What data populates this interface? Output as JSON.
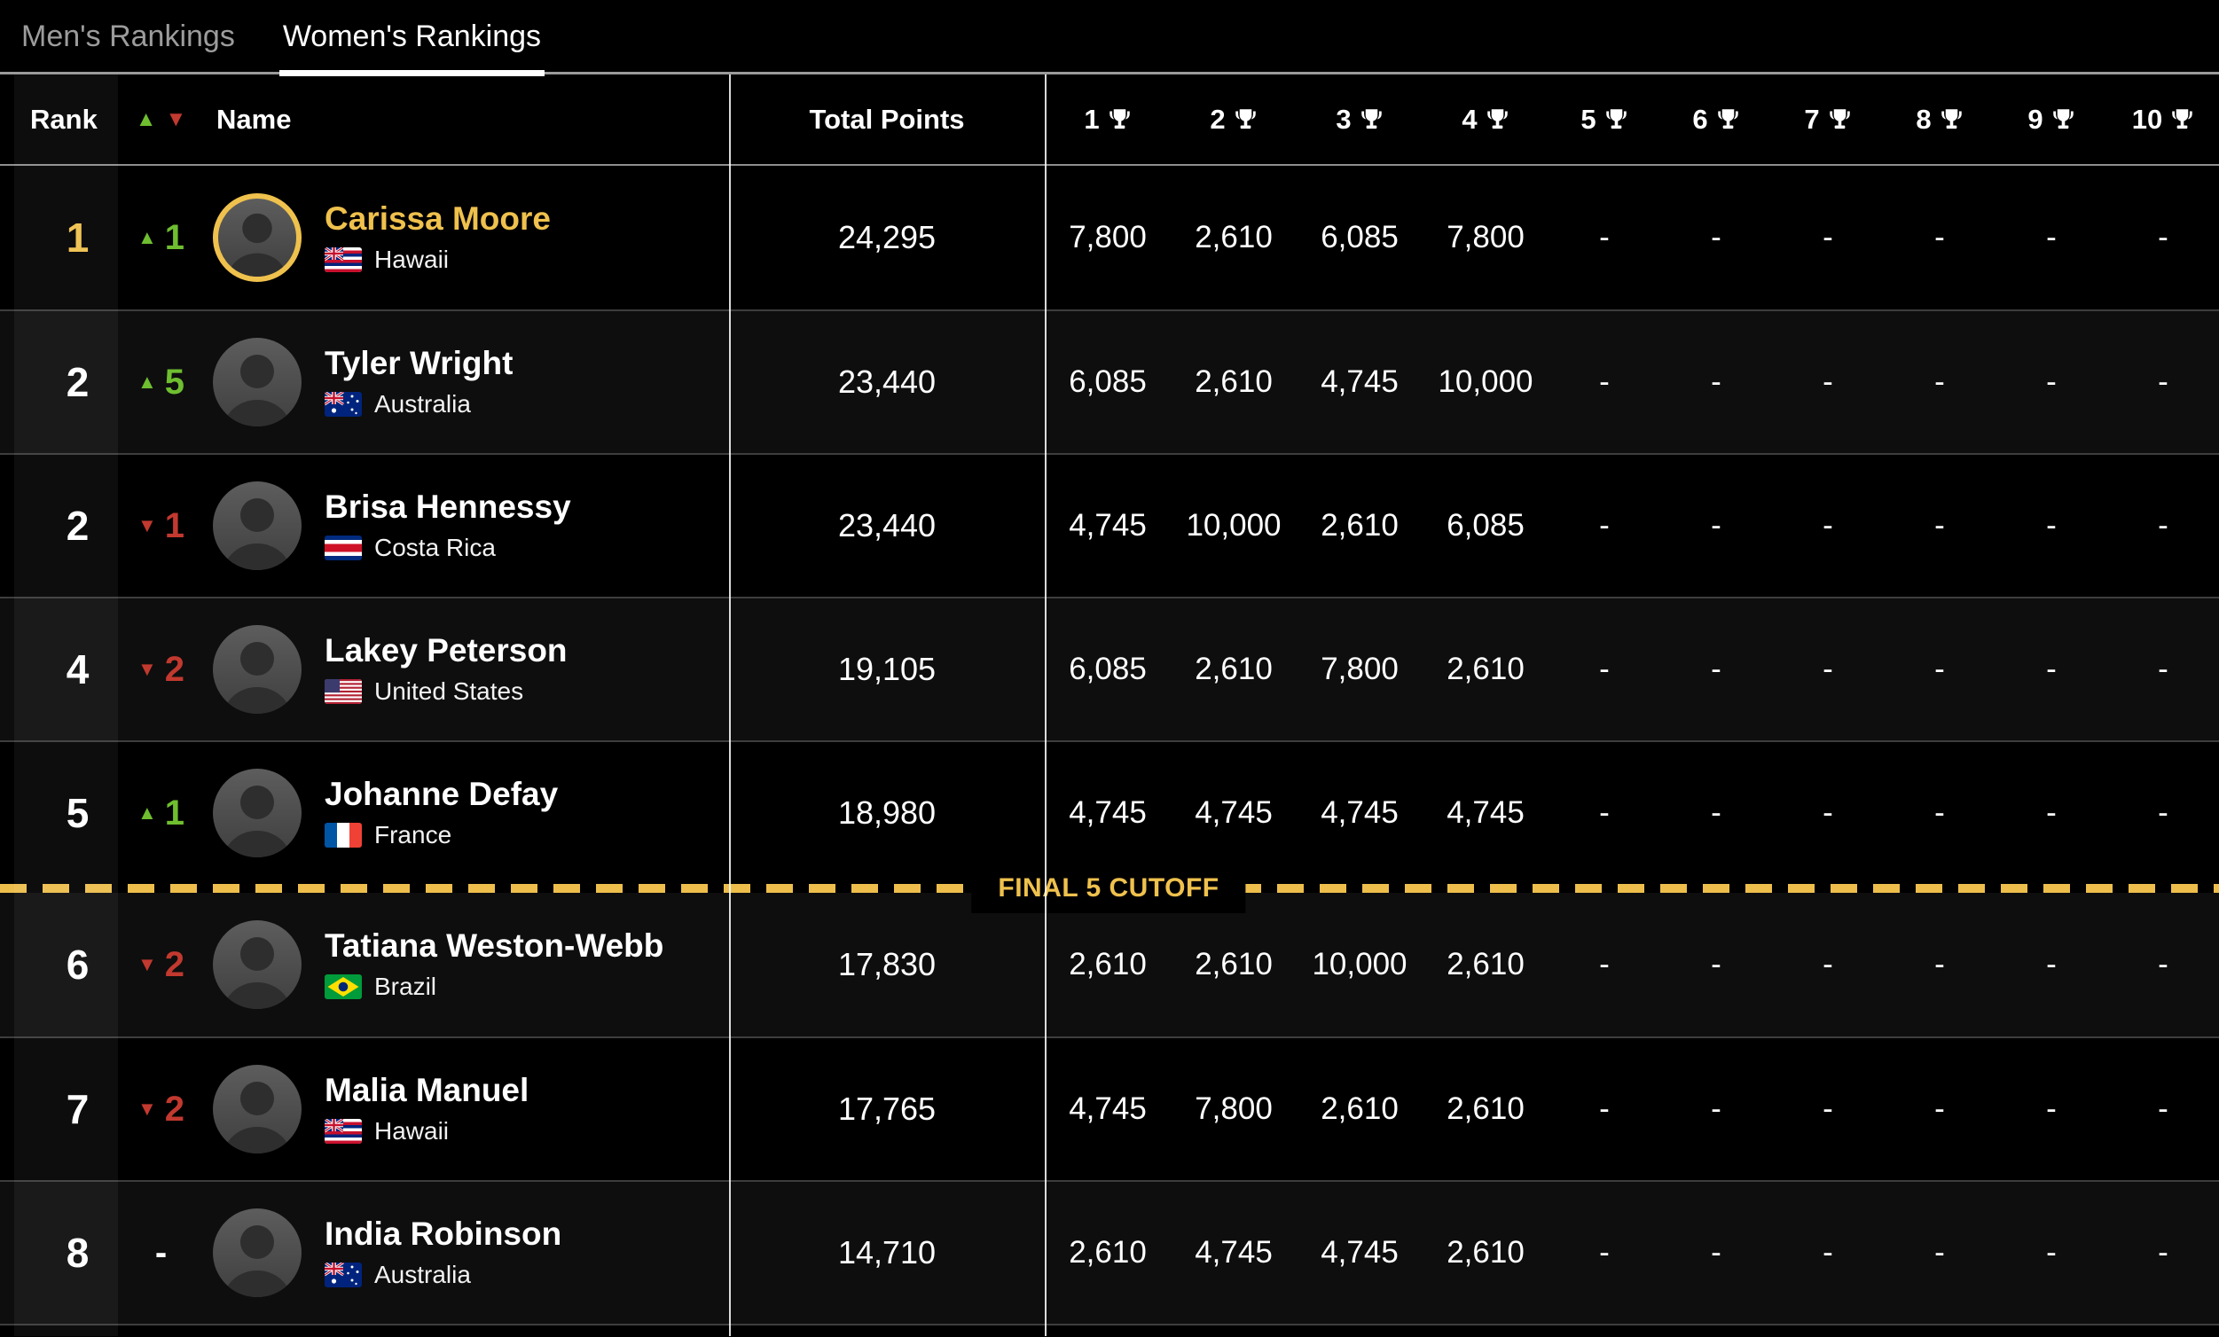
{
  "tabs": {
    "mens": "Men's Rankings",
    "womens": "Women's Rankings"
  },
  "table": {
    "headers": {
      "rank": "Rank",
      "name": "Name",
      "total_points": "Total Points",
      "events": [
        "1",
        "2",
        "3",
        "4",
        "5",
        "6",
        "7",
        "8",
        "9",
        "10"
      ]
    },
    "cutoff_label": "FINAL 5 CUTOFF"
  },
  "colors": {
    "gold": "#EFC14D",
    "green": "#6FBE30",
    "red": "#C2392F"
  },
  "players": [
    {
      "rank": "1",
      "change": "1",
      "change_dir": "up",
      "leader": true,
      "name": "Carissa Moore",
      "country": "Hawaii",
      "flag": "hawaii",
      "total": "24,295",
      "events": [
        "7,800",
        "2,610",
        "6,085",
        "7,800",
        "-",
        "-",
        "-",
        "-",
        "-",
        "-"
      ]
    },
    {
      "rank": "2",
      "change": "5",
      "change_dir": "up",
      "name": "Tyler Wright",
      "country": "Australia",
      "flag": "australia",
      "total": "23,440",
      "events": [
        "6,085",
        "2,610",
        "4,745",
        "10,000",
        "-",
        "-",
        "-",
        "-",
        "-",
        "-"
      ]
    },
    {
      "rank": "2",
      "change": "1",
      "change_dir": "down",
      "name": "Brisa Hennessy",
      "country": "Costa Rica",
      "flag": "costa_rica",
      "total": "23,440",
      "events": [
        "4,745",
        "10,000",
        "2,610",
        "6,085",
        "-",
        "-",
        "-",
        "-",
        "-",
        "-"
      ]
    },
    {
      "rank": "4",
      "change": "2",
      "change_dir": "down",
      "name": "Lakey Peterson",
      "country": "United States",
      "flag": "usa",
      "total": "19,105",
      "events": [
        "6,085",
        "2,610",
        "7,800",
        "2,610",
        "-",
        "-",
        "-",
        "-",
        "-",
        "-"
      ]
    },
    {
      "rank": "5",
      "change": "1",
      "change_dir": "up",
      "name": "Johanne Defay",
      "country": "France",
      "flag": "france",
      "total": "18,980",
      "events": [
        "4,745",
        "4,745",
        "4,745",
        "4,745",
        "-",
        "-",
        "-",
        "-",
        "-",
        "-"
      ]
    },
    {
      "rank": "6",
      "change": "2",
      "change_dir": "down",
      "name": "Tatiana Weston-Webb",
      "country": "Brazil",
      "flag": "brazil",
      "total": "17,830",
      "events": [
        "2,610",
        "2,610",
        "10,000",
        "2,610",
        "-",
        "-",
        "-",
        "-",
        "-",
        "-"
      ]
    },
    {
      "rank": "7",
      "change": "2",
      "change_dir": "down",
      "name": "Malia Manuel",
      "country": "Hawaii",
      "flag": "hawaii",
      "total": "17,765",
      "events": [
        "4,745",
        "7,800",
        "2,610",
        "2,610",
        "-",
        "-",
        "-",
        "-",
        "-",
        "-"
      ]
    },
    {
      "rank": "8",
      "change": "-",
      "change_dir": "none",
      "name": "India Robinson",
      "country": "Australia",
      "flag": "australia",
      "total": "14,710",
      "events": [
        "2,610",
        "4,745",
        "4,745",
        "2,610",
        "-",
        "-",
        "-",
        "-",
        "-",
        "-"
      ]
    }
  ]
}
